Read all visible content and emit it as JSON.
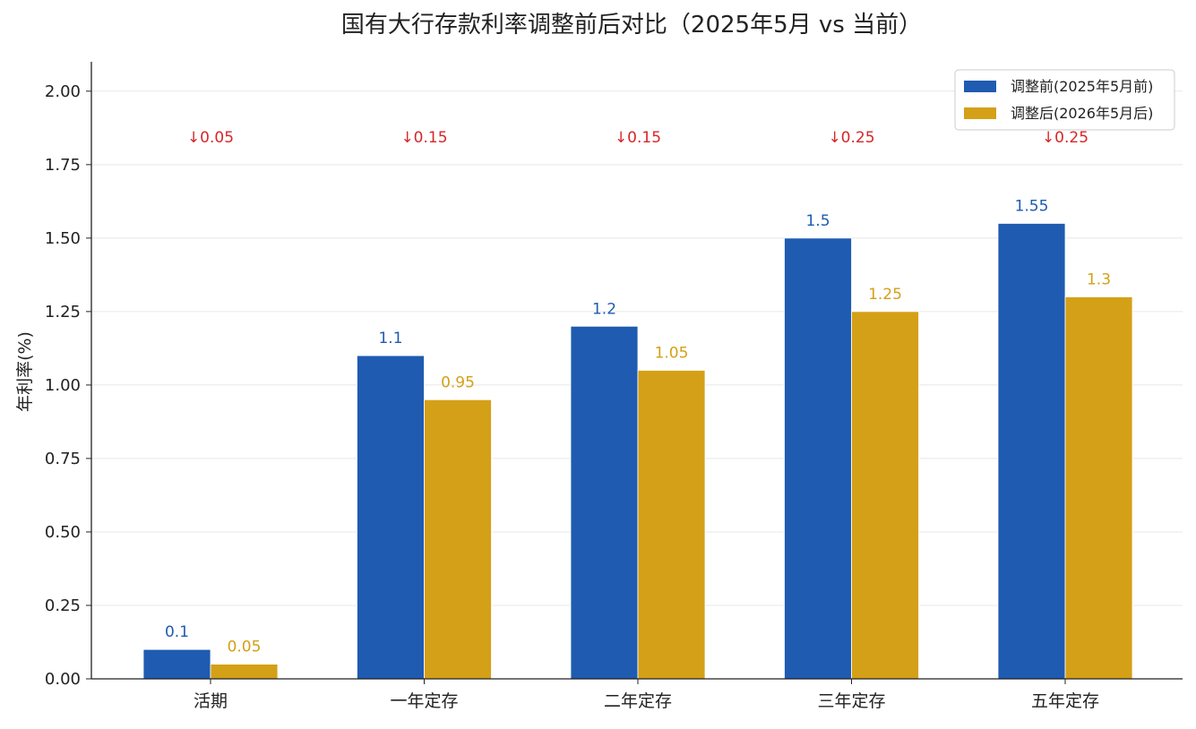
{
  "chart_data": {
    "type": "bar",
    "title": "国有大行存款利率调整前后对比（2025年5月 vs 当前）",
    "xlabel": "",
    "ylabel": "年利率(%)",
    "categories": [
      "活期",
      "一年定存",
      "二年定存",
      "三年定存",
      "五年定存"
    ],
    "series": [
      {
        "name": "调整前(2025年5月前)",
        "values": [
          0.1,
          1.1,
          1.2,
          1.5,
          1.55
        ],
        "value_labels": [
          "0.1",
          "1.1",
          "1.2",
          "1.5",
          "1.55"
        ],
        "color": "#1f5bb1"
      },
      {
        "name": "调整后(2026年5月后)",
        "values": [
          0.05,
          0.95,
          1.05,
          1.25,
          1.3
        ],
        "value_labels": [
          "0.05",
          "0.95",
          "1.05",
          "1.25",
          "1.3"
        ],
        "color": "#d4a017"
      }
    ],
    "annotations": [
      "↓0.05",
      "↓0.15",
      "↓0.15",
      "↓0.25",
      "↓0.25"
    ],
    "annotation_value": 1.82,
    "annotation_color": "#d62728",
    "ylim": [
      0,
      2.1
    ],
    "yticks": [
      0.0,
      0.25,
      0.5,
      0.75,
      1.0,
      1.25,
      1.5,
      1.75,
      2.0
    ],
    "ytick_labels": [
      "0.00",
      "0.25",
      "0.50",
      "0.75",
      "1.00",
      "1.25",
      "1.50",
      "1.75",
      "2.00"
    ],
    "grid": "y",
    "legend_position": "top-right"
  }
}
